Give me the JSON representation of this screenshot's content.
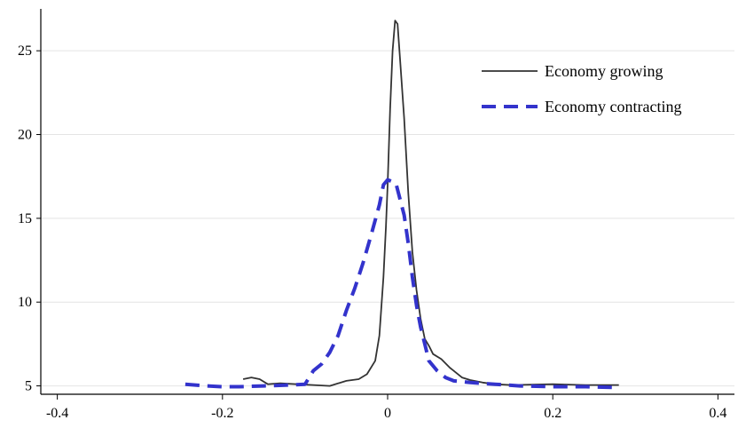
{
  "chart_data": {
    "type": "line",
    "title": "",
    "xlabel": "",
    "ylabel": "",
    "xlim": [
      -0.42,
      0.42
    ],
    "ylim": [
      4.5,
      27.5
    ],
    "x_ticks": [
      -0.4,
      -0.2,
      0,
      0.2,
      0.4
    ],
    "x_tick_labels": [
      "-0.4",
      "-0.2",
      "0",
      "0.2",
      "0.4"
    ],
    "y_ticks": [
      5,
      10,
      15,
      20,
      25
    ],
    "y_tick_labels": [
      "5",
      "10",
      "15",
      "20",
      "25"
    ],
    "grid": "horizontal",
    "legend_position": "top-right",
    "series": [
      {
        "name": "Economy growing",
        "color": "#333333",
        "style": "solid",
        "points": [
          [
            -0.175,
            5.4
          ],
          [
            -0.165,
            5.5
          ],
          [
            -0.155,
            5.4
          ],
          [
            -0.145,
            5.1
          ],
          [
            -0.13,
            5.15
          ],
          [
            -0.11,
            5.1
          ],
          [
            -0.09,
            5.05
          ],
          [
            -0.07,
            5.0
          ],
          [
            -0.05,
            5.3
          ],
          [
            -0.035,
            5.4
          ],
          [
            -0.025,
            5.7
          ],
          [
            -0.015,
            6.5
          ],
          [
            -0.01,
            8.0
          ],
          [
            -0.005,
            11.5
          ],
          [
            -0.002,
            14.5
          ],
          [
            0.0,
            17.0
          ],
          [
            0.003,
            21.5
          ],
          [
            0.006,
            25.0
          ],
          [
            0.009,
            26.8
          ],
          [
            0.012,
            26.6
          ],
          [
            0.015,
            24.5
          ],
          [
            0.02,
            21.0
          ],
          [
            0.025,
            16.5
          ],
          [
            0.03,
            13.0
          ],
          [
            0.035,
            10.7
          ],
          [
            0.04,
            9.0
          ],
          [
            0.045,
            7.8
          ],
          [
            0.05,
            7.4
          ],
          [
            0.055,
            6.9
          ],
          [
            0.065,
            6.6
          ],
          [
            0.075,
            6.1
          ],
          [
            0.09,
            5.5
          ],
          [
            0.1,
            5.35
          ],
          [
            0.115,
            5.2
          ],
          [
            0.13,
            5.1
          ],
          [
            0.15,
            5.05
          ],
          [
            0.2,
            5.1
          ],
          [
            0.24,
            5.05
          ],
          [
            0.28,
            5.05
          ]
        ]
      },
      {
        "name": "Economy contracting",
        "color": "#3333cc",
        "style": "dashed",
        "points": [
          [
            -0.245,
            5.1
          ],
          [
            -0.22,
            5.0
          ],
          [
            -0.2,
            4.95
          ],
          [
            -0.18,
            4.95
          ],
          [
            -0.15,
            5.0
          ],
          [
            -0.12,
            5.05
          ],
          [
            -0.1,
            5.1
          ],
          [
            -0.095,
            5.5
          ],
          [
            -0.09,
            5.9
          ],
          [
            -0.08,
            6.3
          ],
          [
            -0.07,
            7.0
          ],
          [
            -0.06,
            8.0
          ],
          [
            -0.05,
            9.5
          ],
          [
            -0.04,
            10.8
          ],
          [
            -0.03,
            12.3
          ],
          [
            -0.02,
            14.0
          ],
          [
            -0.01,
            15.8
          ],
          [
            -0.005,
            17.0
          ],
          [
            0.0,
            17.3
          ],
          [
            0.01,
            17.1
          ],
          [
            0.02,
            15.2
          ],
          [
            0.025,
            13.5
          ],
          [
            0.03,
            11.5
          ],
          [
            0.035,
            9.8
          ],
          [
            0.04,
            8.5
          ],
          [
            0.045,
            7.5
          ],
          [
            0.05,
            6.5
          ],
          [
            0.06,
            5.9
          ],
          [
            0.07,
            5.5
          ],
          [
            0.08,
            5.3
          ],
          [
            0.1,
            5.2
          ],
          [
            0.13,
            5.1
          ],
          [
            0.16,
            5.0
          ],
          [
            0.2,
            4.95
          ],
          [
            0.24,
            4.95
          ],
          [
            0.28,
            4.9
          ]
        ]
      }
    ]
  }
}
